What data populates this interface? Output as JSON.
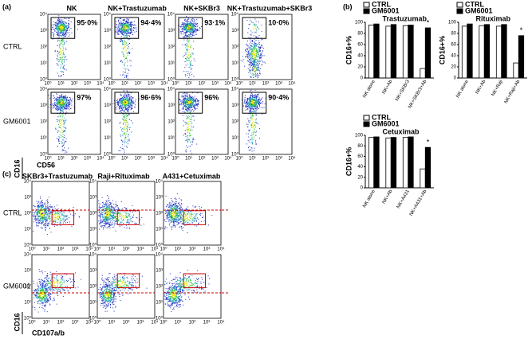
{
  "panel_labels": [
    "(a)",
    "(b)",
    "(c)"
  ],
  "flow_a": {
    "columns": [
      "NK",
      "NK+Trastuzumab",
      "NK+SKBr3",
      "NK+Trastuzumab+SKBr3"
    ],
    "rows": [
      "CTRL",
      "GM6001"
    ],
    "percentages": [
      [
        "95·0%",
        "94·4%",
        "93·1%",
        "10·0%"
      ],
      [
        "97%",
        "96·6%",
        "96%",
        "90·4%"
      ]
    ],
    "x_label": "CD56",
    "y_label": "CD16",
    "tick_labels": [
      "10⁰",
      "10¹",
      "10²",
      "10³",
      "10⁴"
    ]
  },
  "flow_c": {
    "columns": [
      "SKBr3+Trastuzumab",
      "Raji+Rituximab",
      "A431+Cetuximab"
    ],
    "rows": [
      "CTRL",
      "GM6001"
    ],
    "x_label": "CD107a/b",
    "y_label": "CD16",
    "tick_labels": [
      "10⁰",
      "10¹",
      "10²",
      "10³",
      "10⁴"
    ]
  },
  "chart_data": [
    {
      "type": "bar",
      "title": "Trastuzumab",
      "y_label": "CD16+%",
      "categories": [
        "NK alone",
        "NK+Ab",
        "NK+SKBr3",
        "NK+SKBr3+Ab"
      ],
      "series": [
        {
          "name": "CTRL",
          "color": "#ffffff",
          "values": [
            95,
            93,
            94,
            17
          ]
        },
        {
          "name": "GM6001",
          "color": "#000000",
          "values": [
            97,
            96,
            95,
            90
          ]
        }
      ],
      "ylim": [
        0,
        100
      ],
      "yticks": [
        0,
        20,
        40,
        60,
        80,
        100
      ],
      "annotation": "*"
    },
    {
      "type": "bar",
      "title": "Rituximab",
      "y_label": "CD16+%",
      "categories": [
        "NK alone",
        "NK+Ab",
        "NK+Raji",
        "NK+Raji+Ab"
      ],
      "series": [
        {
          "name": "CTRL",
          "color": "#ffffff",
          "values": [
            93,
            94,
            93,
            27
          ]
        },
        {
          "name": "GM6001",
          "color": "#000000",
          "values": [
            97,
            96,
            96,
            76
          ]
        }
      ],
      "ylim": [
        0,
        100
      ],
      "yticks": [
        0,
        20,
        40,
        60,
        80,
        100
      ],
      "annotation": "*"
    },
    {
      "type": "bar",
      "title": "Cetuximab",
      "y_label": "CD16+%",
      "categories": [
        "NK alone",
        "NK+Ab",
        "NK+A431",
        "NK+A431+Ab"
      ],
      "series": [
        {
          "name": "CTRL",
          "color": "#ffffff",
          "values": [
            96,
            95,
            96,
            36
          ]
        },
        {
          "name": "GM6001",
          "color": "#000000",
          "values": [
            97,
            96,
            97,
            77
          ]
        }
      ],
      "ylim": [
        0,
        100
      ],
      "yticks": [
        0,
        20,
        40,
        60,
        80,
        100
      ],
      "annotation": "*"
    }
  ]
}
